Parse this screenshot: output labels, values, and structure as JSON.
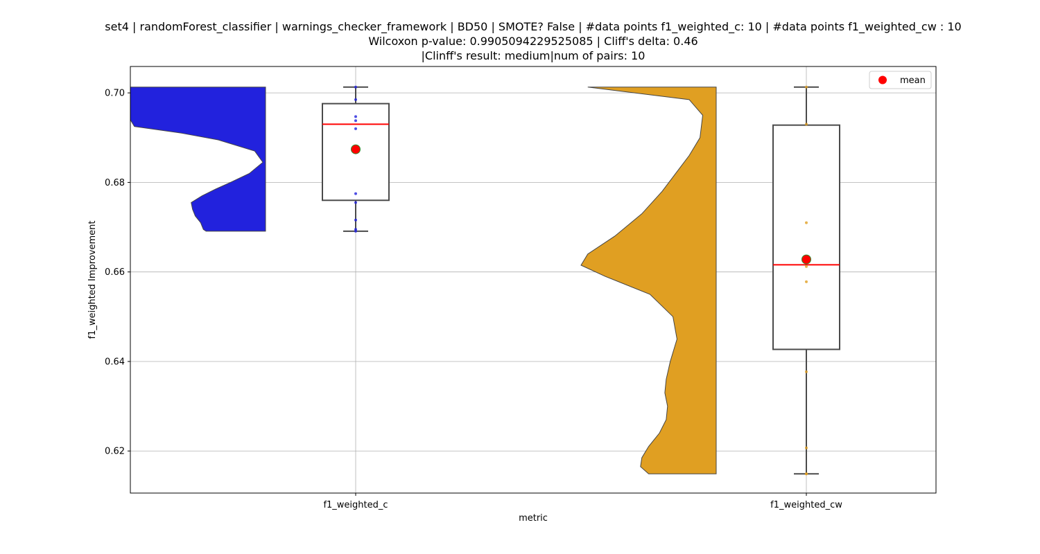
{
  "figure": {
    "title_lines": [
      "set4 | randomForest_classifier | warnings_checker_framework | BD50 | SMOTE? False | #data points f1_weighted_c: 10 | #data points f1_weighted_cw : 10",
      "Wilcoxon p-value: 0.9905094229525085 | Cliff's delta: 0.46",
      "|Clinff's result: medium|num of pairs: 10"
    ]
  },
  "chart_data": {
    "type": "violin+box",
    "xlabel": "metric",
    "ylabel": "f1_weighted Improvement",
    "ylim": [
      0.6106,
      0.7059
    ],
    "yticks": [
      0.62,
      0.64,
      0.66,
      0.68,
      0.7
    ],
    "ytick_labels": [
      "0.62",
      "0.64",
      "0.66",
      "0.68",
      "0.70"
    ],
    "grid": true,
    "legend": {
      "position": "top-right",
      "entries": [
        {
          "label": "mean",
          "color": "#ff0000"
        }
      ]
    },
    "categories": [
      "f1_weighted_c",
      "f1_weighted_cw"
    ],
    "series": [
      {
        "name": "f1_weighted_c",
        "color": "#2222dd",
        "min": 0.6691,
        "q1": 0.676,
        "median": 0.693,
        "q3": 0.6976,
        "max": 0.7013,
        "mean": 0.6874,
        "points": [
          0.7013,
          0.6985,
          0.6947,
          0.6938,
          0.692,
          0.6775,
          0.6755,
          0.6716,
          0.6695,
          0.6691
        ],
        "density": [
          [
            0.6691,
            0.44
          ],
          [
            0.6695,
            0.46
          ],
          [
            0.671,
            0.48
          ],
          [
            0.6725,
            0.52
          ],
          [
            0.674,
            0.54
          ],
          [
            0.6755,
            0.55
          ],
          [
            0.677,
            0.47
          ],
          [
            0.6785,
            0.37
          ],
          [
            0.68,
            0.26
          ],
          [
            0.682,
            0.12
          ],
          [
            0.6845,
            0.02
          ],
          [
            0.687,
            0.08
          ],
          [
            0.6895,
            0.35
          ],
          [
            0.691,
            0.62
          ],
          [
            0.6925,
            0.97
          ],
          [
            0.694,
            1.0
          ],
          [
            0.696,
            1.0
          ],
          [
            0.698,
            1.0
          ],
          [
            0.7,
            1.0
          ],
          [
            0.7013,
            1.0
          ]
        ]
      },
      {
        "name": "f1_weighted_cw",
        "color": "#e09f22",
        "min": 0.6149,
        "q1": 0.6427,
        "median": 0.6616,
        "q3": 0.6928,
        "max": 0.7013,
        "mean": 0.6628,
        "points": [
          0.7013,
          0.693,
          0.671,
          0.6621,
          0.6612,
          0.6578,
          0.6377,
          0.6207,
          0.6149,
          0.6149
        ],
        "density": [
          [
            0.6149,
            0.5
          ],
          [
            0.6165,
            0.56
          ],
          [
            0.6185,
            0.55
          ],
          [
            0.621,
            0.5
          ],
          [
            0.624,
            0.42
          ],
          [
            0.627,
            0.37
          ],
          [
            0.63,
            0.36
          ],
          [
            0.633,
            0.38
          ],
          [
            0.636,
            0.37
          ],
          [
            0.64,
            0.34
          ],
          [
            0.645,
            0.29
          ],
          [
            0.65,
            0.32
          ],
          [
            0.655,
            0.49
          ],
          [
            0.659,
            0.82
          ],
          [
            0.6615,
            1.0
          ],
          [
            0.664,
            0.95
          ],
          [
            0.668,
            0.75
          ],
          [
            0.673,
            0.55
          ],
          [
            0.678,
            0.4
          ],
          [
            0.682,
            0.3
          ],
          [
            0.686,
            0.2
          ],
          [
            0.69,
            0.12
          ],
          [
            0.695,
            0.1
          ],
          [
            0.6985,
            0.2
          ],
          [
            0.7013,
            0.95
          ]
        ]
      }
    ]
  }
}
